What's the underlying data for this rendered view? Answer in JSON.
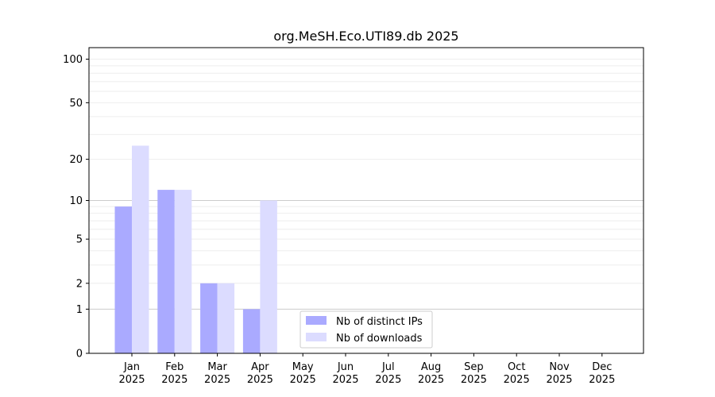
{
  "chart_data": {
    "type": "bar",
    "title": "org.MeSH.Eco.UTI89.db 2025",
    "xlabel": "",
    "ylabel": "",
    "categories": [
      [
        "Jan",
        "2025"
      ],
      [
        "Feb",
        "2025"
      ],
      [
        "Mar",
        "2025"
      ],
      [
        "Apr",
        "2025"
      ],
      [
        "May",
        "2025"
      ],
      [
        "Jun",
        "2025"
      ],
      [
        "Jul",
        "2025"
      ],
      [
        "Aug",
        "2025"
      ],
      [
        "Sep",
        "2025"
      ],
      [
        "Oct",
        "2025"
      ],
      [
        "Nov",
        "2025"
      ],
      [
        "Dec",
        "2025"
      ]
    ],
    "series": [
      {
        "name": "Nb of distinct IPs",
        "color": "#aaaaff",
        "values": [
          9,
          12,
          2,
          1,
          0,
          0,
          0,
          0,
          0,
          0,
          0,
          0
        ]
      },
      {
        "name": "Nb of downloads",
        "color": "#dcdcff",
        "values": [
          25,
          12,
          2,
          10,
          0,
          0,
          0,
          0,
          0,
          0,
          0,
          0
        ]
      }
    ],
    "y_scale": "log1p",
    "yticks": [
      0,
      1,
      2,
      5,
      10,
      20,
      50,
      100
    ],
    "ytick_labels": [
      "0",
      "1",
      "2",
      "5",
      "10",
      "20",
      "50",
      "100"
    ],
    "ylim": [
      0,
      120
    ],
    "grid": true,
    "legend_position": "lower-center"
  }
}
